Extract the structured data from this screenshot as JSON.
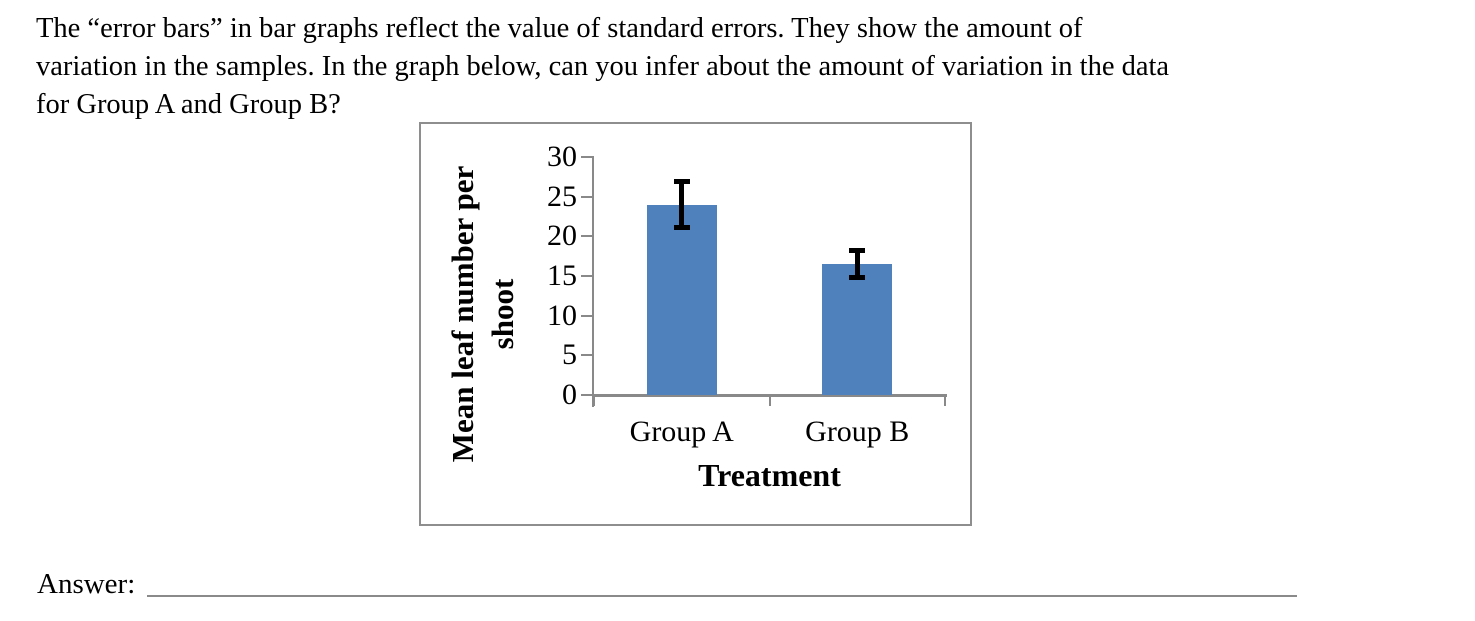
{
  "question": {
    "lines": [
      "The “error bars” in bar graphs reflect the value of standard errors. They show the amount of",
      "variation in the samples. In the graph below, can you infer about the amount of variation in the data",
      "for Group A and Group B?"
    ]
  },
  "chart_data": {
    "type": "bar",
    "categories": [
      "Group A",
      "Group B"
    ],
    "values": [
      24,
      16.5
    ],
    "errors": [
      3.2,
      2
    ],
    "title": "",
    "xlabel": "Treatment",
    "ylabel": "Mean leaf number per shoot",
    "ylabel_lines": [
      "Mean leaf number per",
      "shoot"
    ],
    "ylim": [
      0,
      30
    ],
    "yticks": [
      0,
      5,
      10,
      15,
      20,
      25,
      30
    ],
    "grid": false,
    "legend": false,
    "bar_color": "#4F81BD",
    "error_bar_color": "#000000",
    "axis_color": "#898989"
  },
  "answer": {
    "label": "Answer:"
  }
}
